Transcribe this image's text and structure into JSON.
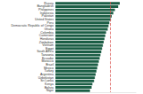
{
  "chart_data": {
    "type": "bar",
    "orientation": "horizontal",
    "categories": [
      "Russia",
      "Bangladesh",
      "Philippines",
      "Indonesia",
      "Pakistan",
      "United States",
      "Peru",
      "Democratic Republic of Congo",
      "Ghana",
      "Colombia",
      "Cameroon",
      "Honduras",
      "Zimbabwe",
      "Vietnam",
      "Egypt",
      "South Africa",
      "Tanzania",
      "Ecuador",
      "Morocco",
      "Brazil",
      "Mexico",
      "Turkey",
      "Argentina",
      "Uzbekistan",
      "Sri Lanka",
      "Kenya",
      "Bolivia",
      "Niger"
    ],
    "values": [
      80,
      78,
      74,
      72,
      70,
      69,
      67,
      66,
      65,
      63,
      62,
      61,
      60,
      59,
      58,
      57,
      56,
      55,
      54,
      53,
      52,
      51,
      50,
      49,
      48,
      46,
      45,
      43
    ],
    "color": "#1b5e45",
    "reference_line": 68,
    "xlim": [
      0,
      100
    ],
    "grid": false,
    "tick_labels": "y"
  }
}
